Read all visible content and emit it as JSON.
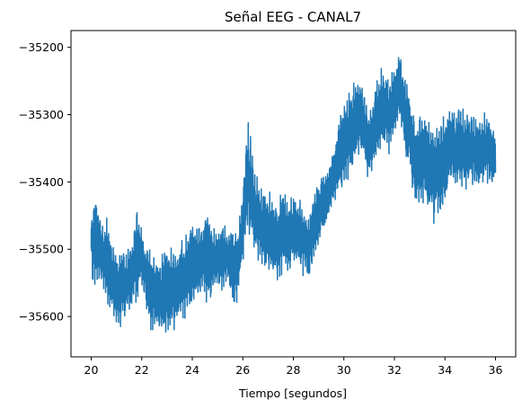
{
  "chart_data": {
    "type": "line",
    "title": "Señal EEG - CANAL7",
    "xlabel": "Tiempo [segundos]",
    "ylabel": "",
    "xlim": [
      19.2,
      36.8
    ],
    "ylim": [
      -35660,
      -35175
    ],
    "xticks": [
      20,
      22,
      24,
      26,
      28,
      30,
      32,
      34,
      36
    ],
    "yticks": [
      -35600,
      -35500,
      -35400,
      -35300,
      -35200
    ],
    "grid": false,
    "color": "#1f77b4",
    "series": [
      {
        "envelope_x": [
          20.0,
          20.2,
          20.4,
          20.6,
          20.8,
          21.0,
          21.2,
          21.4,
          21.6,
          21.8,
          22.0,
          22.2,
          22.4,
          22.6,
          22.8,
          23.0,
          23.2,
          23.4,
          23.6,
          23.8,
          24.0,
          24.2,
          24.4,
          24.6,
          24.8,
          25.0,
          25.2,
          25.4,
          25.6,
          25.8,
          26.0,
          26.2,
          26.4,
          26.6,
          26.8,
          27.0,
          27.2,
          27.4,
          27.6,
          27.8,
          28.0,
          28.2,
          28.4,
          28.6,
          28.8,
          29.0,
          29.2,
          29.4,
          29.6,
          29.8,
          30.0,
          30.2,
          30.4,
          30.6,
          30.8,
          31.0,
          31.2,
          31.4,
          31.6,
          31.8,
          32.0,
          32.2,
          32.4,
          32.6,
          32.8,
          33.0,
          33.2,
          33.4,
          33.6,
          33.8,
          34.0,
          34.2,
          34.4,
          34.6,
          34.8,
          35.0,
          35.2,
          35.4,
          35.6,
          35.8,
          36.0
        ],
        "envelope_high": [
          -35445,
          -35405,
          -35460,
          -35450,
          -35480,
          -35500,
          -35495,
          -35505,
          -35490,
          -35430,
          -35465,
          -35490,
          -35500,
          -35510,
          -35500,
          -35480,
          -35490,
          -35495,
          -35480,
          -35470,
          -35450,
          -35460,
          -35465,
          -35420,
          -35470,
          -35465,
          -35460,
          -35470,
          -35460,
          -35470,
          -35400,
          -35305,
          -35350,
          -35400,
          -35410,
          -35410,
          -35420,
          -35430,
          -35400,
          -35425,
          -35415,
          -35420,
          -35430,
          -35450,
          -35405,
          -35400,
          -35380,
          -35375,
          -35350,
          -35300,
          -35270,
          -35255,
          -35250,
          -35235,
          -35260,
          -35290,
          -35270,
          -35230,
          -35230,
          -35250,
          -35215,
          -35195,
          -35230,
          -35260,
          -35300,
          -35290,
          -35295,
          -35305,
          -35315,
          -35300,
          -35295,
          -35275,
          -35290,
          -35275,
          -35300,
          -35290,
          -35300,
          -35305,
          -35295,
          -35295,
          -35330
        ],
        "envelope_low": [
          -35555,
          -35560,
          -35555,
          -35580,
          -35600,
          -35615,
          -35620,
          -35595,
          -35590,
          -35585,
          -35555,
          -35600,
          -35625,
          -35620,
          -35630,
          -35635,
          -35625,
          -35615,
          -35610,
          -35600,
          -35590,
          -35580,
          -35565,
          -35585,
          -35570,
          -35560,
          -35565,
          -35545,
          -35590,
          -35580,
          -35530,
          -35475,
          -35500,
          -35525,
          -35530,
          -35535,
          -35545,
          -35555,
          -35530,
          -35545,
          -35520,
          -35530,
          -35540,
          -35545,
          -35520,
          -35500,
          -35480,
          -35460,
          -35430,
          -35420,
          -35410,
          -35400,
          -35375,
          -35360,
          -35380,
          -35400,
          -35380,
          -35360,
          -35345,
          -35360,
          -35335,
          -35320,
          -35355,
          -35390,
          -35440,
          -35440,
          -35430,
          -35455,
          -35465,
          -35460,
          -35445,
          -35400,
          -35410,
          -35410,
          -35420,
          -35410,
          -35410,
          -35415,
          -35405,
          -35410,
          -35400
        ]
      }
    ]
  }
}
